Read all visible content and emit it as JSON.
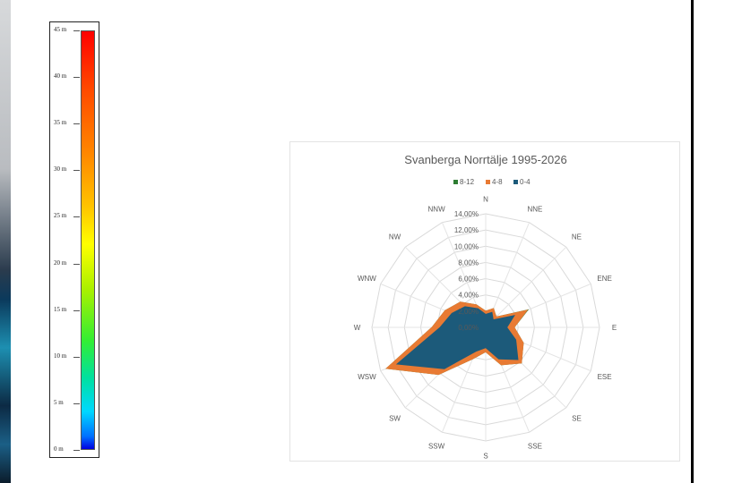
{
  "colorbar": {
    "ticks": [
      "45 m",
      "40 m",
      "35 m",
      "30 m",
      "25 m",
      "20 m",
      "15 m",
      "10 m",
      "5 m",
      "0 m"
    ],
    "tick_values": [
      45,
      40,
      35,
      30,
      25,
      20,
      15,
      10,
      5,
      0
    ],
    "max": 45,
    "min": 0
  },
  "chart_data": {
    "type": "radar",
    "title": "Svanberga Norrtälje 1995-2026",
    "directions": [
      "N",
      "NNE",
      "NE",
      "ENE",
      "E",
      "ESE",
      "SE",
      "SSE",
      "S",
      "SSW",
      "SW",
      "WSW",
      "W",
      "WNW",
      "NW",
      "NNW"
    ],
    "r_ticks": [
      "0,00%",
      "2,00%",
      "4,00%",
      "6,00%",
      "8,00%",
      "10,00%",
      "12,00%",
      "14,00%"
    ],
    "r_max": 14,
    "legend_position": "top",
    "series": [
      {
        "name": "8-12",
        "color": "#2e7d32",
        "values": [
          2.0,
          2.5,
          1.8,
          5.6,
          3.5,
          5.0,
          6.2,
          5.0,
          3.0,
          4.2,
          8.2,
          13.2,
          6.6,
          5.4,
          4.4,
          3.0
        ]
      },
      {
        "name": "4-8",
        "color": "#e87a33",
        "values": [
          2.0,
          2.5,
          1.8,
          5.5,
          3.5,
          5.0,
          6.2,
          5.0,
          3.0,
          4.2,
          8.2,
          13.2,
          6.6,
          5.4,
          4.4,
          3.0
        ]
      },
      {
        "name": "0-4",
        "color": "#1c5a7a",
        "values": [
          1.6,
          2.0,
          1.3,
          3.8,
          2.6,
          4.0,
          5.6,
          4.2,
          2.5,
          3.2,
          7.2,
          11.8,
          5.6,
          4.5,
          3.6,
          2.5
        ]
      }
    ]
  }
}
